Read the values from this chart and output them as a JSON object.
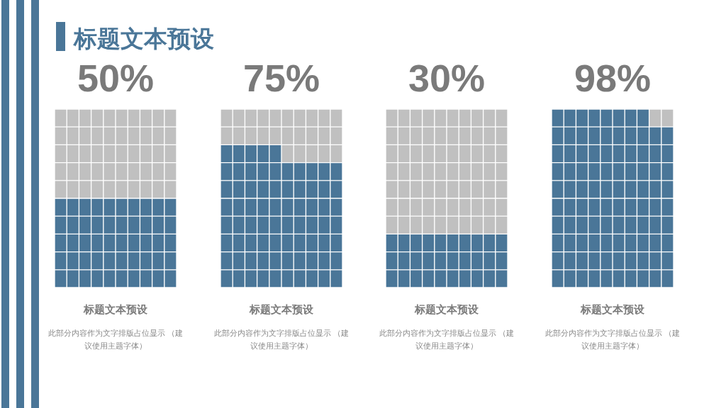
{
  "chart_data": {
    "type": "other",
    "title": "标题文本预设",
    "categories": [
      "标题文本预设",
      "标题文本预设",
      "标题文本预设",
      "标题文本预设"
    ],
    "values": [
      50,
      75,
      30,
      98
    ],
    "value_labels": [
      "50%",
      "75%",
      "30%",
      "98%"
    ],
    "color": "#4a7698",
    "annotations": [
      "此部分内容作为文字排版占位显示 （建议使用主题字体）",
      "此部分内容作为文字排版占位显示 （建议使用主题字体）",
      "此部分内容作为文字排版占位显示 （建议使用主题字体）",
      "此部分内容作为文字排版占位显示 （建议使用主题字体）"
    ]
  }
}
